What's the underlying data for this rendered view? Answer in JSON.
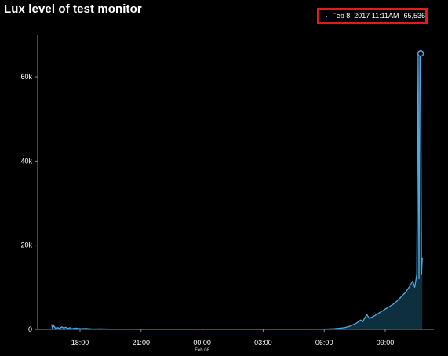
{
  "chart_data": {
    "type": "area",
    "title": "Lux level of test monitor",
    "xlabel": "",
    "ylabel": "",
    "xlim_hours": [
      16.5,
      35.5
    ],
    "ylim": [
      0,
      72000
    ],
    "grid": false,
    "legend": "none",
    "x_ticks": [
      {
        "hour": 18,
        "label": "18:00",
        "sublabel": ""
      },
      {
        "hour": 21,
        "label": "21:00",
        "sublabel": ""
      },
      {
        "hour": 24,
        "label": "00:00",
        "sublabel": "Feb 08"
      },
      {
        "hour": 27,
        "label": "03:00",
        "sublabel": ""
      },
      {
        "hour": 30,
        "label": "06:00",
        "sublabel": ""
      },
      {
        "hour": 33,
        "label": "09:00",
        "sublabel": ""
      }
    ],
    "y_ticks": [
      {
        "value": 0,
        "label": "0"
      },
      {
        "value": 20000,
        "label": "20k"
      },
      {
        "value": 40000,
        "label": "40k"
      },
      {
        "value": 60000,
        "label": "60k"
      }
    ],
    "series": [
      {
        "color": "#4fa8e3",
        "fill": "#0e2f3e",
        "points": [
          [
            16.6,
            1200
          ],
          [
            16.65,
            300
          ],
          [
            16.7,
            900
          ],
          [
            16.8,
            200
          ],
          [
            16.9,
            400
          ],
          [
            17.0,
            200
          ],
          [
            17.1,
            600
          ],
          [
            17.2,
            300
          ],
          [
            17.3,
            500
          ],
          [
            17.4,
            200
          ],
          [
            17.5,
            400
          ],
          [
            17.6,
            150
          ],
          [
            17.8,
            300
          ],
          [
            18.0,
            150
          ],
          [
            18.3,
            200
          ],
          [
            18.6,
            100
          ],
          [
            19.0,
            120
          ],
          [
            19.5,
            80
          ],
          [
            20.0,
            60
          ],
          [
            21.0,
            40
          ],
          [
            22.0,
            30
          ],
          [
            23.0,
            20
          ],
          [
            24.0,
            20
          ],
          [
            25.0,
            20
          ],
          [
            26.0,
            20
          ],
          [
            27.0,
            20
          ],
          [
            28.0,
            20
          ],
          [
            29.0,
            30
          ],
          [
            30.0,
            50
          ],
          [
            30.5,
            150
          ],
          [
            31.0,
            400
          ],
          [
            31.3,
            800
          ],
          [
            31.6,
            1500
          ],
          [
            31.8,
            2200
          ],
          [
            31.9,
            1800
          ],
          [
            32.0,
            2800
          ],
          [
            32.1,
            3500
          ],
          [
            32.2,
            2600
          ],
          [
            32.4,
            3000
          ],
          [
            32.6,
            3600
          ],
          [
            32.8,
            4200
          ],
          [
            33.0,
            4800
          ],
          [
            33.2,
            5400
          ],
          [
            33.4,
            6000
          ],
          [
            33.6,
            6800
          ],
          [
            33.8,
            7800
          ],
          [
            34.0,
            8800
          ],
          [
            34.2,
            10200
          ],
          [
            34.35,
            11500
          ],
          [
            34.45,
            10000
          ],
          [
            34.55,
            13000
          ],
          [
            34.62,
            65536
          ],
          [
            34.66,
            12000
          ],
          [
            34.7,
            65536
          ],
          [
            34.74,
            65536
          ],
          [
            34.78,
            13000
          ],
          [
            34.82,
            17000
          ]
        ]
      }
    ],
    "highlight": {
      "label": "Feb  8, 2017  11:11AM",
      "value_label": "65,536",
      "hour": 34.74,
      "value": 65536
    }
  }
}
